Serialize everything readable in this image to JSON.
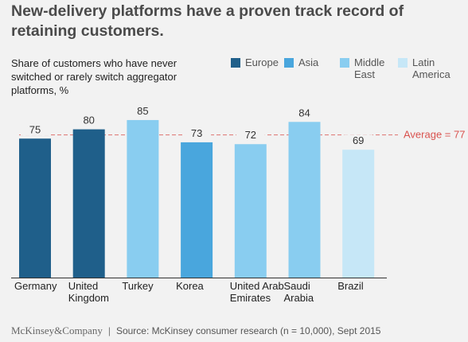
{
  "title": "New-delivery platforms have a proven track record of retaining customers.",
  "chart_data": {
    "type": "bar",
    "title": "",
    "ylabel": "Share of customers who have never switched or rarely switch aggregator platforms, %",
    "xlabel": "",
    "ylim": [
      0,
      100
    ],
    "categories": [
      "Germany",
      "United Kingdom",
      "Turkey",
      "Korea",
      "United Arab Emirates",
      "Saudi Arabia",
      "Brazil"
    ],
    "category_lines": [
      [
        "Germany"
      ],
      [
        "United",
        "Kingdom"
      ],
      [
        "Turkey"
      ],
      [
        "Korea"
      ],
      [
        "United Arab",
        "Emirates"
      ],
      [
        "Saudi",
        "Arabia"
      ],
      [
        "Brazil"
      ]
    ],
    "values": [
      75,
      80,
      85,
      73,
      72,
      84,
      69
    ],
    "regions": [
      "Europe",
      "Europe",
      "Middle East",
      "Asia",
      "Middle East",
      "Middle East",
      "Latin America"
    ],
    "legend": [
      {
        "name": "Europe",
        "color": "#1f5f8a"
      },
      {
        "name": "Asia",
        "color": "#49a6dd"
      },
      {
        "name": "Middle East",
        "color": "#89cdf0"
      },
      {
        "name": "Latin America",
        "color": "#c6e7f7"
      }
    ],
    "reference_line": {
      "value": 77,
      "label": "Average = 77",
      "color": "#d9534f"
    },
    "grid": false,
    "legend_position": "top-right"
  },
  "footer": {
    "brand": "McKinsey&Company",
    "separator": "|",
    "source": "Source: McKinsey consumer research (n = 10,000), Sept 2015"
  }
}
